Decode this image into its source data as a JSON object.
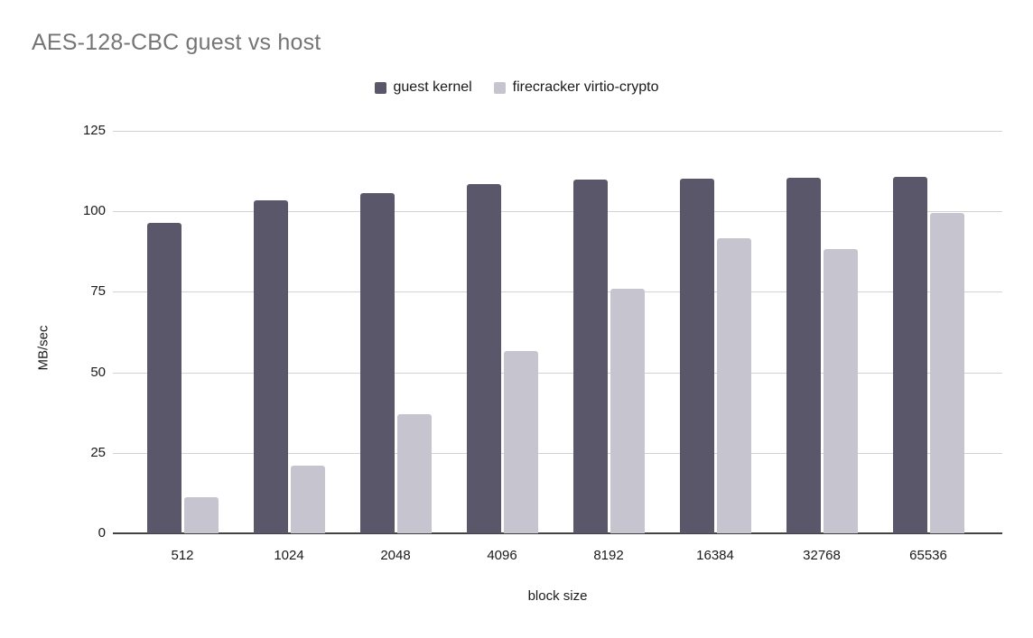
{
  "chart_data": {
    "type": "bar",
    "title": "AES-128-CBC guest vs host",
    "xlabel": "block size",
    "ylabel": "MB/sec",
    "categories": [
      "512",
      "1024",
      "2048",
      "4096",
      "8192",
      "16384",
      "32768",
      "65536"
    ],
    "series": [
      {
        "name": "guest kernel",
        "color": "#5b576b",
        "values": [
          96.4,
          103.4,
          105.8,
          108.5,
          109.9,
          110.2,
          110.4,
          110.7
        ]
      },
      {
        "name": "firecracker virtio-crypto",
        "color": "#c6c4cf",
        "values": [
          11.3,
          21.1,
          37.0,
          56.5,
          76.0,
          91.7,
          88.4,
          99.5
        ]
      }
    ],
    "ylim": [
      0,
      125
    ],
    "yticks": [
      0,
      25,
      50,
      75,
      100,
      125
    ],
    "grid": true,
    "legend_position": "top"
  },
  "styles": {
    "title_color": "#757575",
    "axis_text_color": "#1a1a1a",
    "gridline_color": "#d3d3d3",
    "axis_line_color": "#424242",
    "background": "#ffffff"
  }
}
